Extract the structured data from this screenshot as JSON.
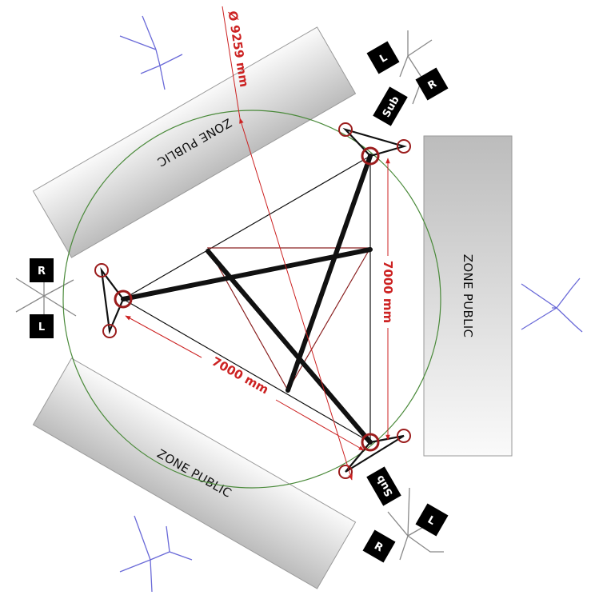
{
  "zones": [
    {
      "id": "top-left",
      "label": "ZONE PUBLIC"
    },
    {
      "id": "right",
      "label": "ZONE PUBLIC"
    },
    {
      "id": "bottom-left",
      "label": "ZONE PUBLIC"
    }
  ],
  "dimensions": {
    "diameter": "Ø 9259 mm",
    "right_side": "7000 mm",
    "bottom_side": "7000 mm"
  },
  "speaker_badges": {
    "left": "L",
    "right": "R",
    "sub": "Sub"
  },
  "colors": {
    "dimension": "#cc2222",
    "circle": "#4a8a3a",
    "speaker_marker": "#9b1c1c",
    "microphone": "#6a6ad8",
    "zone_fill_light": "#f2f2f2",
    "zone_fill_dark": "#bdbdbd"
  }
}
